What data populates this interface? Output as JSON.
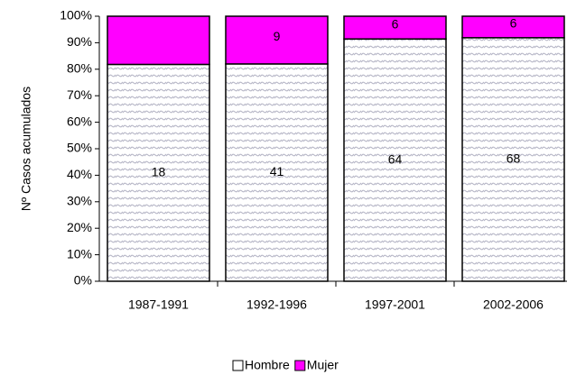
{
  "chart_data": {
    "type": "stacked_percent_bar",
    "y_label": "Nº Casos acumulados",
    "categories": [
      "1987-1991",
      "1992-1996",
      "1997-2001",
      "2002-2006"
    ],
    "series": [
      {
        "name": "Hombre",
        "color": "#ffffff",
        "values": [
          18,
          41,
          64,
          68
        ],
        "value_labels": [
          "18",
          "41",
          "64",
          "68"
        ]
      },
      {
        "name": "Mujer",
        "color": "#ff00ff",
        "values": [
          4,
          9,
          6,
          6
        ],
        "value_labels": [
          null,
          "9",
          "6",
          "6"
        ]
      }
    ],
    "ylim": [
      0,
      100
    ],
    "yticks": [
      {
        "value": 0,
        "label": "0%"
      },
      {
        "value": 10,
        "label": "10%"
      },
      {
        "value": 20,
        "label": "20%"
      },
      {
        "value": 30,
        "label": "30%"
      },
      {
        "value": 40,
        "label": "40%"
      },
      {
        "value": 50,
        "label": "50%"
      },
      {
        "value": 60,
        "label": "60%"
      },
      {
        "value": 70,
        "label": "70%"
      },
      {
        "value": 80,
        "label": "80%"
      },
      {
        "value": 90,
        "label": "90%"
      },
      {
        "value": 100,
        "label": "100%"
      }
    ],
    "legend": "bottom"
  }
}
